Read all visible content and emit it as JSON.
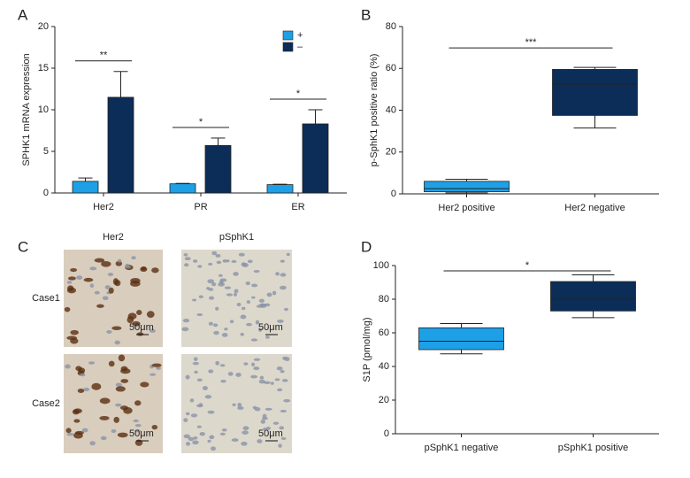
{
  "chart_data": [
    {
      "type": "bar",
      "panel": "A",
      "y_label": "SPHK1 mRNA expression",
      "categories": [
        "Her2",
        "PR",
        "ER"
      ],
      "series": [
        {
          "name": "+",
          "color": "#1ea0e6",
          "values": [
            1.4,
            1.1,
            1.0
          ],
          "errors": [
            0.4,
            0.05,
            0.05
          ]
        },
        {
          "name": "–",
          "color": "#0b2d57",
          "values": [
            11.5,
            5.7,
            8.3
          ],
          "errors": [
            3.1,
            0.9,
            1.7
          ]
        }
      ],
      "annotations": [
        "**",
        "*",
        "*"
      ],
      "ylim": [
        0,
        20
      ],
      "yticks": [
        0,
        5,
        10,
        15,
        20
      ]
    },
    {
      "type": "box",
      "panel": "B",
      "y_label": "p-SphK1 positive ratio (%)",
      "categories": [
        "Her2 positive",
        "Her2 negative"
      ],
      "boxes": [
        {
          "color": "#1ea0e6",
          "min": 0.5,
          "q1": 1,
          "median": 2.5,
          "q3": 6,
          "max": 7
        },
        {
          "color": "#0b2d57",
          "min": 31.5,
          "q1": 37.5,
          "median": 52.5,
          "q3": 59.5,
          "max": 60.5
        }
      ],
      "annotation": "***",
      "ylim": [
        0,
        80
      ],
      "yticks": [
        0,
        20,
        40,
        60,
        80
      ]
    },
    {
      "type": "image-grid",
      "panel": "C",
      "columns": [
        "Her2",
        "pSphK1"
      ],
      "rows": [
        "Case1",
        "Case2"
      ],
      "scale_label": "50μm"
    },
    {
      "type": "box",
      "panel": "D",
      "y_label": "S1P (pmol/mg)",
      "categories": [
        "pSphK1 negative",
        "pSphK1 positive"
      ],
      "boxes": [
        {
          "color": "#1ea0e6",
          "min": 47.5,
          "q1": 50,
          "median": 55,
          "q3": 63,
          "max": 65.5
        },
        {
          "color": "#0b2d57",
          "min": 69,
          "q1": 73,
          "median": 80,
          "q3": 90.5,
          "max": 94.5
        }
      ],
      "annotation": "*",
      "ylim": [
        0,
        100
      ],
      "yticks": [
        0,
        20,
        40,
        60,
        80,
        100
      ]
    }
  ]
}
